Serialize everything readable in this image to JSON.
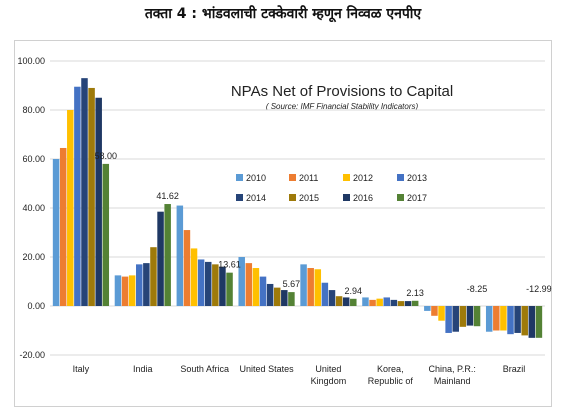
{
  "page": {
    "heading": "तक्ता 4 : भांडवलाची टक्केवारी म्हणून निव्वळ एनपीए"
  },
  "chart_data": {
    "type": "bar",
    "title": "NPAs Net of Provisions to Capital",
    "subtitle": "( Source: IMF Financial Stability Indicators)",
    "xlabel": "",
    "ylabel": "",
    "ylim": [
      -20,
      100
    ],
    "yticks": [
      "-20.00",
      "0.00",
      "20.00",
      "40.00",
      "60.00",
      "80.00",
      "100.00"
    ],
    "ytick_values": [
      -20,
      0,
      20,
      40,
      60,
      80,
      100
    ],
    "grid": true,
    "legend_position": "center-right",
    "categories": [
      "Italy",
      "India",
      "South Africa",
      "United States",
      "United Kingdom",
      "Korea, Republic of",
      "China, P.R.: Mainland",
      "Brazil"
    ],
    "category_lines": [
      [
        "Italy"
      ],
      [
        "India"
      ],
      [
        "South Africa"
      ],
      [
        "United States"
      ],
      [
        "United",
        "Kingdom"
      ],
      [
        "Korea,",
        "Republic of"
      ],
      [
        "China, P.R.:",
        "Mainland"
      ],
      [
        "Brazil"
      ]
    ],
    "series": [
      {
        "name": "2010",
        "color": "#5b9bd5",
        "values": [
          60,
          12.5,
          41,
          20,
          17,
          3.5,
          -2,
          -10.5
        ]
      },
      {
        "name": "2011",
        "color": "#ed7d31",
        "values": [
          64.5,
          12,
          31,
          17.5,
          15.5,
          2.5,
          -4,
          -10
        ]
      },
      {
        "name": "2012",
        "color": "#ffc000",
        "values": [
          80,
          12.5,
          23.5,
          15.5,
          15,
          3,
          -6,
          -10
        ]
      },
      {
        "name": "2013",
        "color": "#4472c4",
        "values": [
          89.5,
          17,
          19,
          12,
          9.5,
          3.5,
          -11,
          -11.5
        ]
      },
      {
        "name": "2014",
        "color": "#264478",
        "values": [
          93,
          17.5,
          18,
          9,
          6.5,
          2.5,
          -10.5,
          -11
        ]
      },
      {
        "name": "2015",
        "color": "#9e7a0a",
        "values": [
          89,
          24,
          17,
          7.5,
          4,
          2,
          -8.5,
          -12
        ]
      },
      {
        "name": "2016",
        "color": "#1f3864",
        "values": [
          85,
          38.5,
          16,
          6.5,
          3.5,
          2,
          -8,
          -13
        ]
      },
      {
        "name": "2017",
        "color": "#548235",
        "values": [
          58,
          41.62,
          13.61,
          5.67,
          2.94,
          2.13,
          -8.25,
          -12.99
        ]
      }
    ],
    "data_labels": [
      "58.00",
      "41.62",
      "13.61",
      "5.67",
      "2.94",
      "2.13",
      "-8.25",
      "-12.99"
    ]
  }
}
